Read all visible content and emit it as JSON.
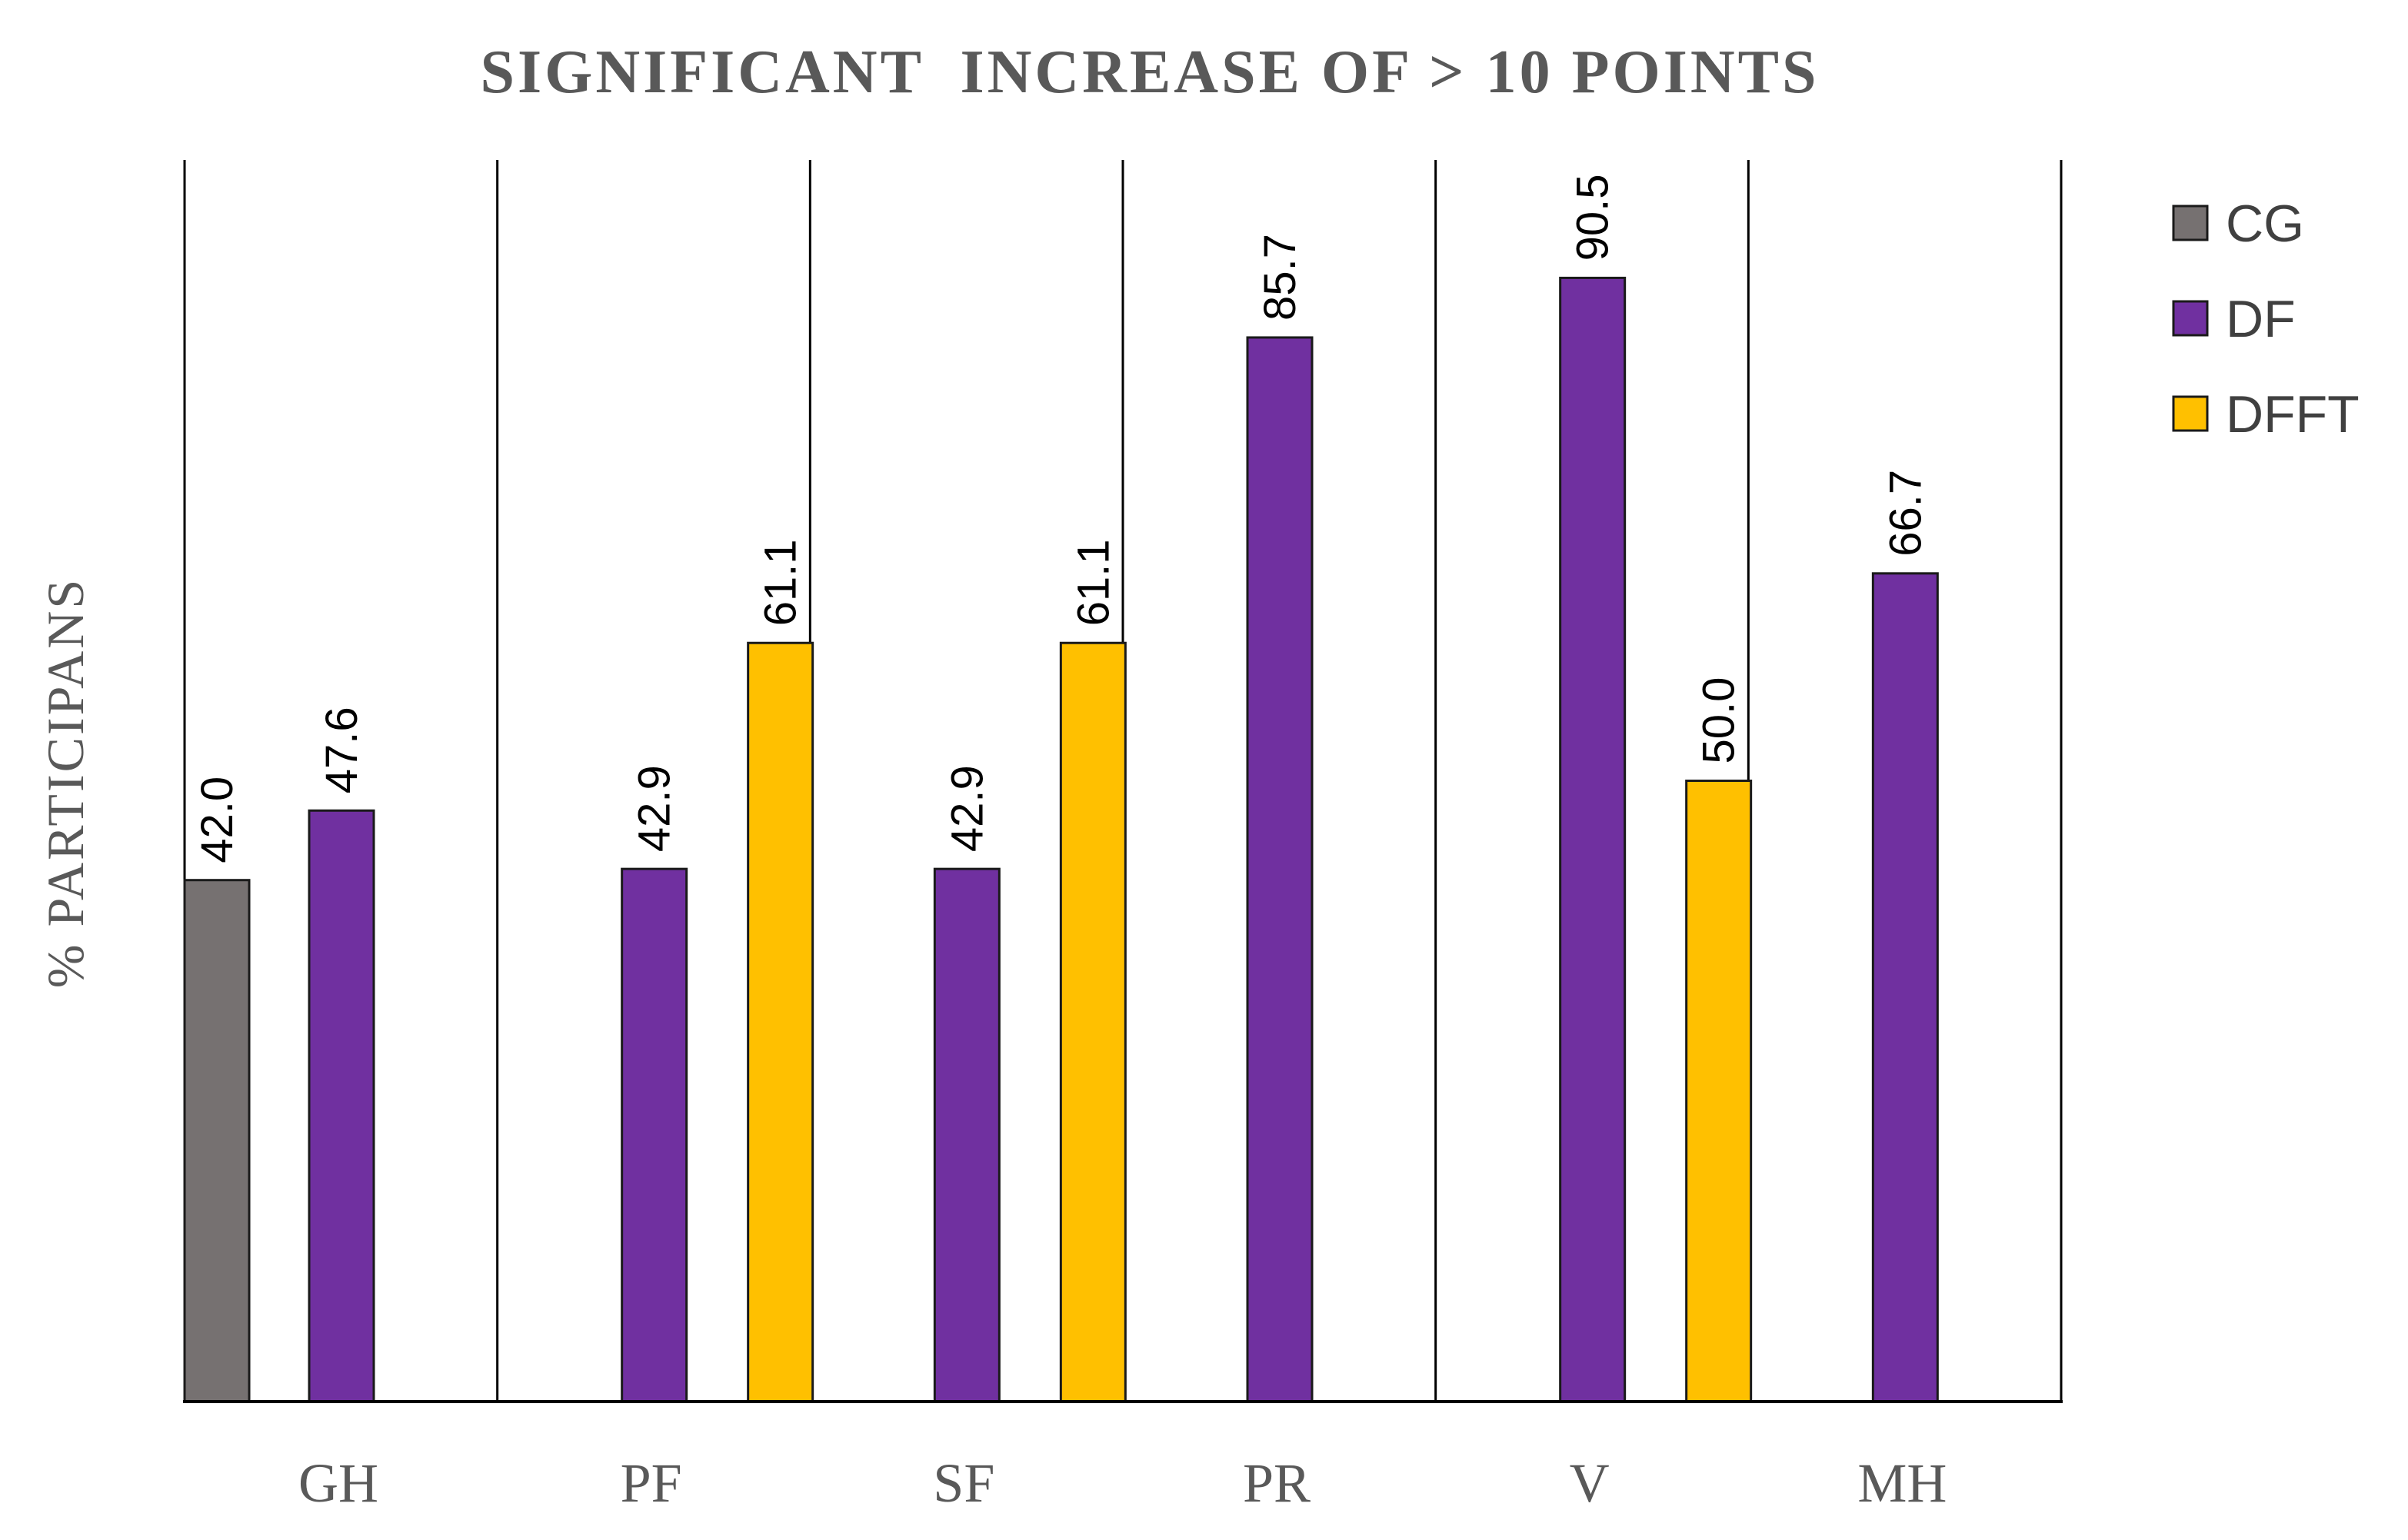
{
  "chart_data": {
    "type": "bar",
    "title": "SIGNIFICANT  INCREASE OF > 10 POINTS",
    "xlabel": "",
    "ylabel": "% PARTICIPANS",
    "categories": [
      "GH",
      "PF",
      "SF",
      "PR",
      "V",
      "MH"
    ],
    "series": [
      {
        "name": "CG",
        "color": "#767171",
        "values": [
          42.0,
          null,
          null,
          null,
          null,
          null
        ],
        "labels": [
          "42.0",
          "",
          "",
          "",
          "",
          ""
        ]
      },
      {
        "name": "DF",
        "color": "#7030A0",
        "values": [
          47.6,
          42.9,
          42.9,
          85.7,
          90.5,
          66.7
        ],
        "labels": [
          "47.6",
          "42.9",
          "42.9",
          "85.7",
          "90.5",
          "66.7"
        ]
      },
      {
        "name": "DFFT",
        "color": "#FFC000",
        "values": [
          null,
          61.1,
          61.1,
          null,
          50.0,
          null
        ],
        "labels": [
          "",
          "61.1",
          "61.1",
          "",
          "50.0",
          ""
        ]
      }
    ],
    "ylim": [
      0,
      100
    ],
    "grid": "vertical category separators",
    "legend": "top-right"
  }
}
